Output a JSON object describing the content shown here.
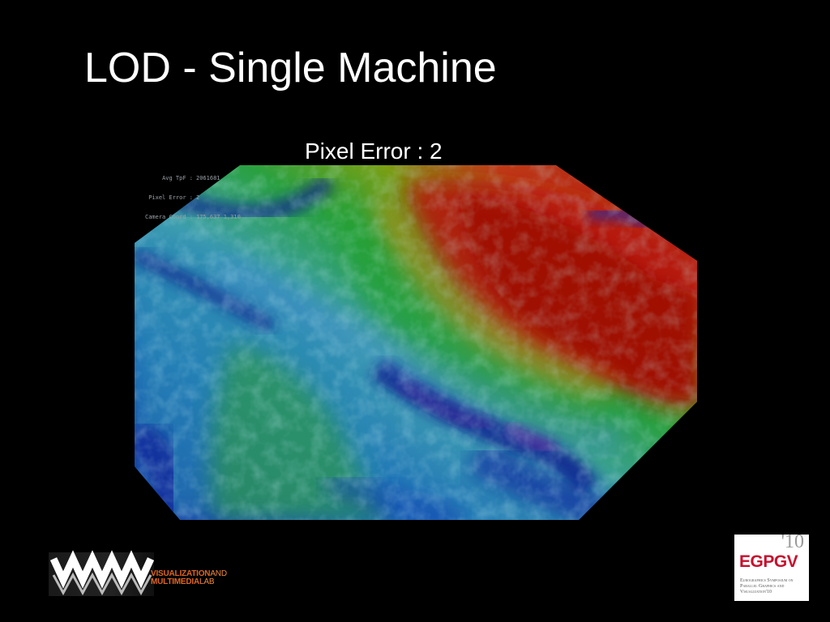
{
  "slide": {
    "title": "LOD - Single Machine",
    "subtitle": "Pixel Error : 2"
  },
  "hud": {
    "lines": [
      {
        "label": "Avg TpF :",
        "value": "2061681"
      },
      {
        "label": "Pixel Error :",
        "value": "2"
      },
      {
        "label": "Camera Coord :",
        "value": "175,637 1,310"
      }
    ]
  },
  "logos": {
    "vml": {
      "line1_bold": "VISUALIZATION",
      "line1_light": "AND",
      "line2_bold": "MULTIMEDIA",
      "line2_light": "LAB",
      "icon": "vml-wave-logo"
    },
    "egpgv": {
      "year": "'10",
      "name": "EGPGV",
      "description": "Eurographics Symposium on Parallel Graphics and Visualization'10"
    }
  },
  "colors": {
    "background": "#000000",
    "title": "#ffffff",
    "vml_orange": "#e0651f",
    "egpgv_red": "#c8102e",
    "terrain_low": "#0a1a8c",
    "terrain_mid": "#1a9a3a",
    "terrain_high": "#b01a0a"
  }
}
